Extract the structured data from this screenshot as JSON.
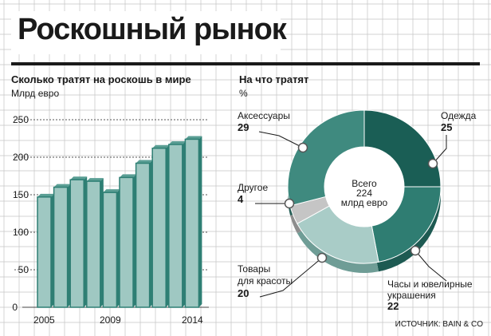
{
  "title": "Роскошный рынок",
  "colors": {
    "bar_front": "#9fc8c2",
    "bar_side": "#2e7f74",
    "bar_top": "#5a9e94",
    "grid": "#c4c4c4",
    "dark": "#1a5e55"
  },
  "bar_chart": {
    "heading": "Сколько тратят на роскошь в мире",
    "unit": "Млрд евро",
    "y_ticks": [
      "250",
      "200",
      "150",
      "100",
      "50",
      "0"
    ],
    "x_labels": [
      "2005",
      "2009",
      "2014"
    ]
  },
  "donut_chart": {
    "heading": "На что тратят",
    "unit": "%",
    "center_line1": "Всего",
    "center_line2": "224",
    "center_line3": "млрд евро",
    "labels": {
      "accessories": "Аксессуары",
      "clothes": "Одежда",
      "other": "Другое",
      "beauty_1": "Товары",
      "beauty_2": "для красоты",
      "watches_1": "Часы и ювелирные",
      "watches_2": "украшения"
    },
    "values": {
      "accessories": "29",
      "clothes": "25",
      "other": "4",
      "beauty": "20",
      "watches": "22"
    }
  },
  "source": "ИСТОЧНИК: BAIN & CO",
  "chart_data": [
    {
      "type": "bar",
      "title": "Сколько тратят на роскошь в мире",
      "ylabel": "Млрд евро",
      "categories": [
        "2005",
        "2006",
        "2007",
        "2008",
        "2009",
        "2010",
        "2011",
        "2012",
        "2013",
        "2014"
      ],
      "values": [
        147,
        160,
        170,
        168,
        153,
        173,
        192,
        212,
        217,
        224
      ],
      "ylim": [
        0,
        250
      ]
    },
    {
      "type": "pie",
      "title": "На что тратят",
      "unit": "%",
      "total": "224 млрд евро",
      "categories": [
        "Одежда",
        "Часы и ювелирные украшения",
        "Товары для красоты",
        "Другое",
        "Аксессуары"
      ],
      "values": [
        25,
        22,
        20,
        4,
        29
      ]
    }
  ]
}
